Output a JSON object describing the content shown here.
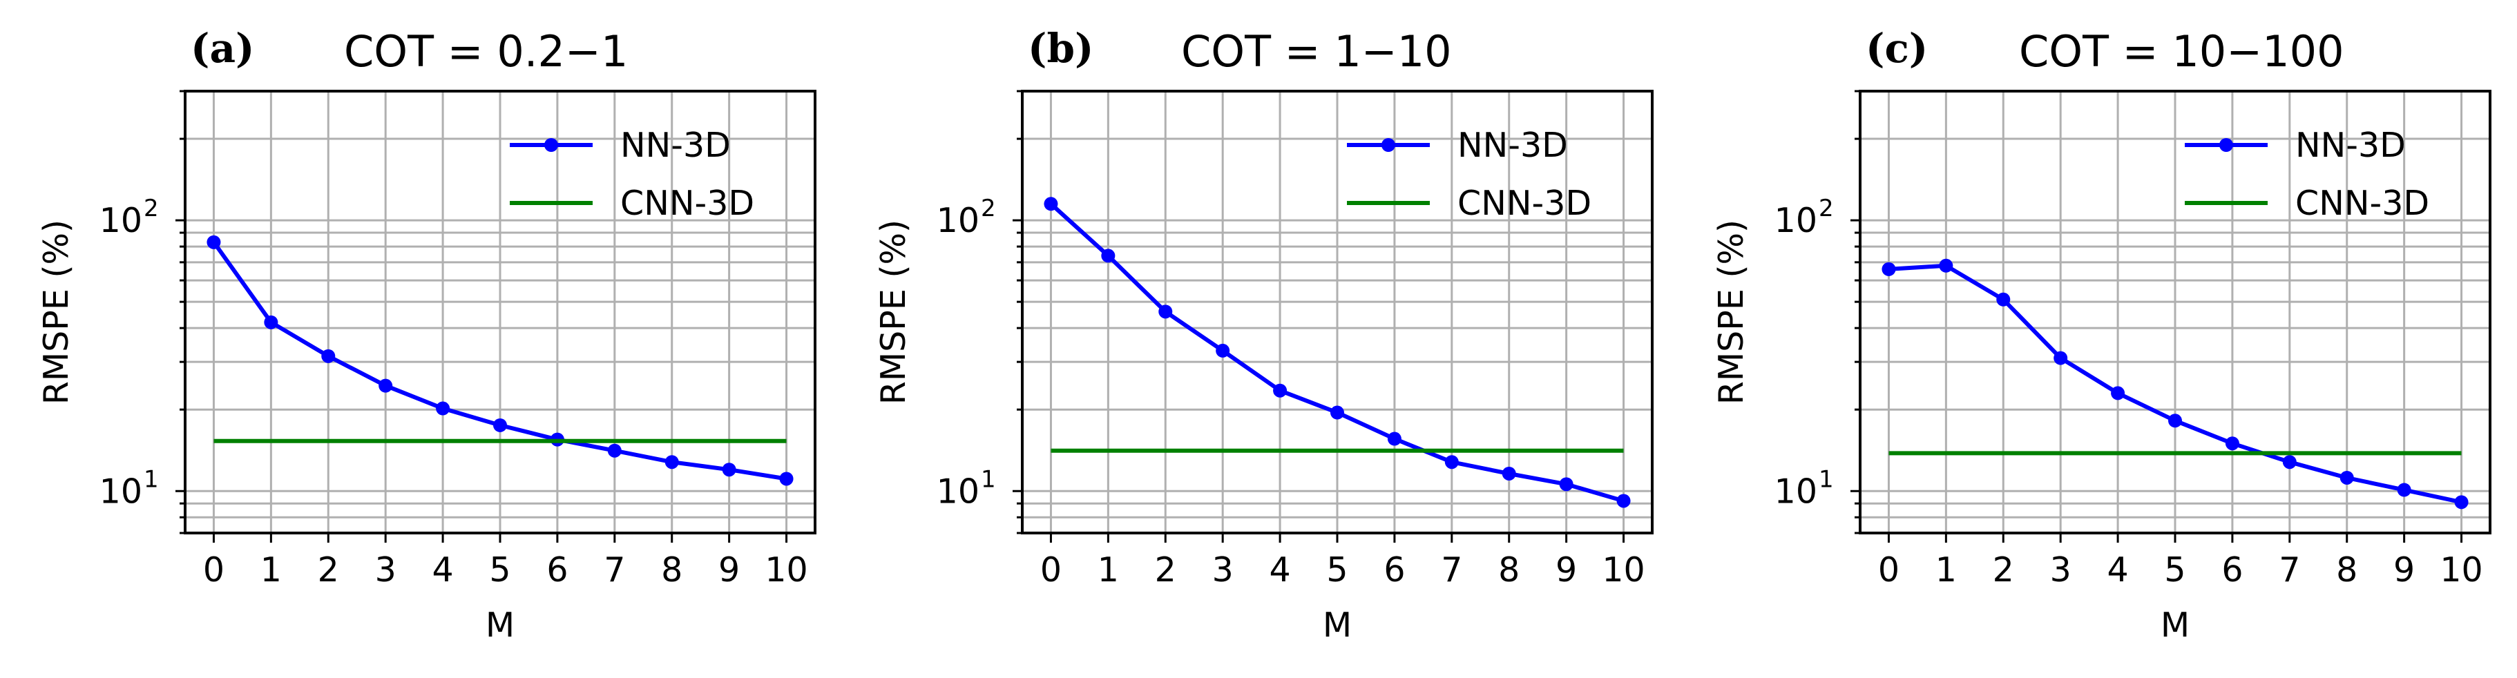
{
  "figure": {
    "description_labels": [
      "(a)",
      "(b)",
      "(c)"
    ]
  },
  "chart_data": [
    {
      "type": "line",
      "panel_label": "(a)",
      "title": "COT = 0.2−1",
      "xlabel": "M",
      "ylabel": "RMSPE (%)",
      "yscale": "log",
      "ylim": [
        7,
        300
      ],
      "xlim": [
        -0.5,
        10.5
      ],
      "x": [
        0,
        1,
        2,
        3,
        4,
        5,
        6,
        7,
        8,
        9,
        10
      ],
      "x_tick_labels": [
        "0",
        "1",
        "2",
        "3",
        "4",
        "5",
        "6",
        "7",
        "8",
        "9",
        "10"
      ],
      "y_ticks": [
        {
          "value": 10,
          "base": "10",
          "exp": "1"
        },
        {
          "value": 100,
          "base": "10",
          "exp": "2"
        }
      ],
      "grid": true,
      "legend_position": "top-right",
      "series": [
        {
          "name": "NN-3D",
          "color": "#0000ff",
          "marker": "circle",
          "values": [
            83,
            42,
            31.5,
            24.5,
            20.2,
            17.5,
            15.5,
            14.1,
            12.8,
            12.0,
            11.1
          ]
        },
        {
          "name": "CNN-3D",
          "color": "#008000",
          "marker": "none",
          "values": [
            15.3,
            15.3,
            15.3,
            15.3,
            15.3,
            15.3,
            15.3,
            15.3,
            15.3,
            15.3,
            15.3
          ]
        }
      ]
    },
    {
      "type": "line",
      "panel_label": "(b)",
      "title": "COT = 1−10",
      "xlabel": "M",
      "ylabel": "RMSPE (%)",
      "yscale": "log",
      "ylim": [
        7,
        300
      ],
      "xlim": [
        -0.5,
        10.5
      ],
      "x": [
        0,
        1,
        2,
        3,
        4,
        5,
        6,
        7,
        8,
        9,
        10
      ],
      "x_tick_labels": [
        "0",
        "1",
        "2",
        "3",
        "4",
        "5",
        "6",
        "7",
        "8",
        "9",
        "10"
      ],
      "y_ticks": [
        {
          "value": 10,
          "base": "10",
          "exp": "1"
        },
        {
          "value": 100,
          "base": "10",
          "exp": "2"
        }
      ],
      "grid": true,
      "legend_position": "top-right",
      "series": [
        {
          "name": "NN-3D",
          "color": "#0000ff",
          "marker": "circle",
          "values": [
            115,
            74,
            46,
            33,
            23.5,
            19.5,
            15.6,
            12.8,
            11.6,
            10.6,
            9.2
          ]
        },
        {
          "name": "CNN-3D",
          "color": "#008000",
          "marker": "none",
          "values": [
            14.1,
            14.1,
            14.1,
            14.1,
            14.1,
            14.1,
            14.1,
            14.1,
            14.1,
            14.1,
            14.1
          ]
        }
      ]
    },
    {
      "type": "line",
      "panel_label": "(c)",
      "title": "COT = 10−100",
      "xlabel": "M",
      "ylabel": "RMSPE (%)",
      "yscale": "log",
      "ylim": [
        7,
        300
      ],
      "xlim": [
        -0.5,
        10.5
      ],
      "x": [
        0,
        1,
        2,
        3,
        4,
        5,
        6,
        7,
        8,
        9,
        10
      ],
      "x_tick_labels": [
        "0",
        "1",
        "2",
        "3",
        "4",
        "5",
        "6",
        "7",
        "8",
        "9",
        "10"
      ],
      "y_ticks": [
        {
          "value": 10,
          "base": "10",
          "exp": "1"
        },
        {
          "value": 100,
          "base": "10",
          "exp": "2"
        }
      ],
      "grid": true,
      "legend_position": "top-right",
      "series": [
        {
          "name": "NN-3D",
          "color": "#0000ff",
          "marker": "circle",
          "values": [
            66,
            68,
            51,
            31,
            23,
            18.2,
            15.0,
            12.8,
            11.2,
            10.1,
            9.1
          ]
        },
        {
          "name": "CNN-3D",
          "color": "#008000",
          "marker": "none",
          "values": [
            13.8,
            13.8,
            13.8,
            13.8,
            13.8,
            13.8,
            13.8,
            13.8,
            13.8,
            13.8,
            13.8
          ]
        }
      ]
    }
  ]
}
